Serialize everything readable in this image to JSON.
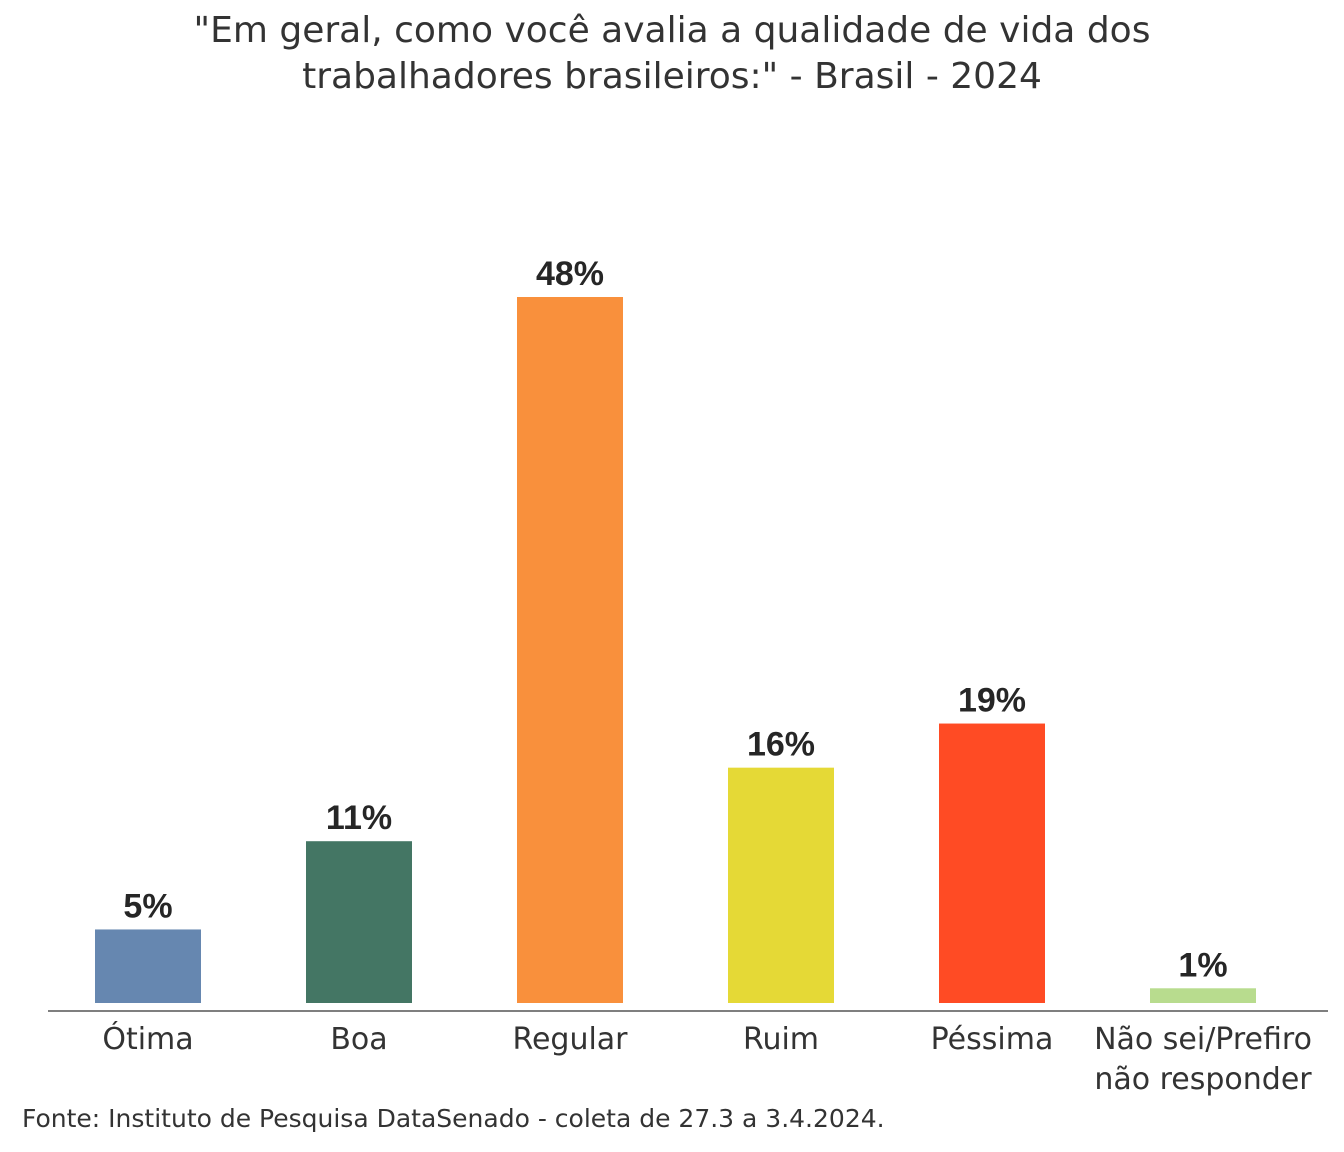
{
  "chart_data": {
    "type": "bar",
    "title": "\"Em geral, como você avalia a qualidade de vida dos trabalhadores brasileiros:\" - Brasil - 2024",
    "title_lines": [
      "\"Em geral, como você avalia a qualidade de vida dos",
      "trabalhadores brasileiros:\" - Brasil - 2024"
    ],
    "categories": [
      [
        "Ótima"
      ],
      [
        "Boa"
      ],
      [
        "Regular"
      ],
      [
        "Ruim"
      ],
      [
        "Péssima"
      ],
      [
        "Não sei/Prefiro",
        "não responder"
      ]
    ],
    "values": [
      5,
      11,
      48,
      16,
      19,
      1
    ],
    "value_labels": [
      "5%",
      "11%",
      "48%",
      "16%",
      "19%",
      "1%"
    ],
    "colors": [
      "#6687B0",
      "#447664",
      "#F9903C",
      "#E5D936",
      "#FF4B24",
      "#B8DC8E"
    ],
    "xlabel": "",
    "ylabel": "",
    "ylim": [
      0,
      48
    ],
    "grid": false,
    "legend": "none"
  },
  "source": "Fonte: Instituto de Pesquisa DataSenado - coleta de 27.3 a 3.4.2024."
}
